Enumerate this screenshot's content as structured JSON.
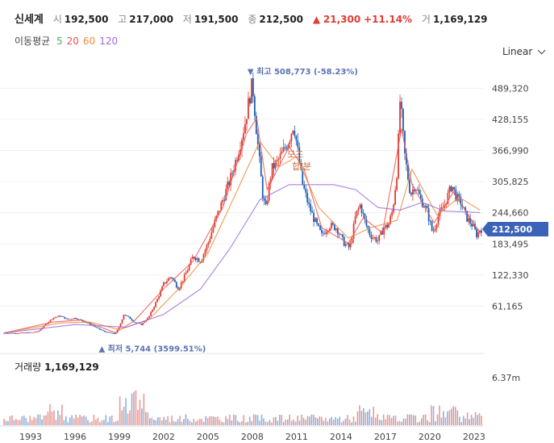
{
  "header": {
    "stock_name": "신세계",
    "open_label": "시",
    "open": "192,500",
    "high_label": "고",
    "high": "217,000",
    "low_label": "저",
    "low": "191,500",
    "close_label": "종",
    "close": "212,500",
    "change_arrow": "▲",
    "change": "21,300",
    "change_pct": "+11.14%",
    "volume_label": "거",
    "volume": "1,169,129"
  },
  "moving_average": {
    "label": "이동평균",
    "periods": [
      {
        "value": "5",
        "color": "#4caf50"
      },
      {
        "value": "20",
        "color": "#ef5350"
      },
      {
        "value": "60",
        "color": "#ef8a3c"
      },
      {
        "value": "120",
        "color": "#9c6ade"
      }
    ]
  },
  "scale_toggle": "Linear",
  "volume_panel": {
    "title": "거래량",
    "value": "1,169,129",
    "max_label": "6.37m"
  },
  "tooltip": {
    "text_line1": "모즈",
    "text_line2": "합/분"
  },
  "chart_data": {
    "type": "candlestick",
    "x_label_years": [
      "1993",
      "1996",
      "1999",
      "2002",
      "2005",
      "2008",
      "2011",
      "2014",
      "2017",
      "2020",
      "2023"
    ],
    "y_tick_labels": [
      "489,320",
      "428,155",
      "366,990",
      "305,825",
      "244,660",
      "183,495",
      "122,330",
      "61,165"
    ],
    "yaxis": {
      "min": 0,
      "max": 520000,
      "scale": "linear"
    },
    "current_price_label": "212,500",
    "current_price": 212500,
    "annotations": {
      "max": {
        "text": "최고 508,773 (-58.23%)",
        "value": 508773,
        "year": 2008.0,
        "arrow": "▼"
      },
      "min": {
        "text": "최저 5,744 (3599.51%)",
        "value": 5744,
        "year": 1998.7,
        "arrow": "▲"
      }
    },
    "colors": {
      "up": "#e03c31",
      "down": "#1e5fb3",
      "last_price_badge": "#3b63b8"
    },
    "price_series": {
      "name": "",
      "points": [
        [
          1991.2,
          8500
        ],
        [
          1992.0,
          8000
        ],
        [
          1992.8,
          9000
        ],
        [
          1993.5,
          11000
        ],
        [
          1994.0,
          25000
        ],
        [
          1994.5,
          38000
        ],
        [
          1995.0,
          42000
        ],
        [
          1995.5,
          35000
        ],
        [
          1996.0,
          38000
        ],
        [
          1996.5,
          32000
        ],
        [
          1997.0,
          26000
        ],
        [
          1997.5,
          18000
        ],
        [
          1998.0,
          11000
        ],
        [
          1998.7,
          6500
        ],
        [
          1999.0,
          20000
        ],
        [
          1999.3,
          45000
        ],
        [
          1999.7,
          38000
        ],
        [
          2000.0,
          30000
        ],
        [
          2000.5,
          25000
        ],
        [
          2001.0,
          40000
        ],
        [
          2001.5,
          70000
        ],
        [
          2002.0,
          105000
        ],
        [
          2002.5,
          120000
        ],
        [
          2003.0,
          95000
        ],
        [
          2003.5,
          125000
        ],
        [
          2004.0,
          160000
        ],
        [
          2004.5,
          150000
        ],
        [
          2005.0,
          185000
        ],
        [
          2005.5,
          230000
        ],
        [
          2006.0,
          270000
        ],
        [
          2006.5,
          310000
        ],
        [
          2007.0,
          360000
        ],
        [
          2007.5,
          420000
        ],
        [
          2007.8,
          470000
        ],
        [
          2008.0,
          500000
        ],
        [
          2008.3,
          400000
        ],
        [
          2008.7,
          280000
        ],
        [
          2008.9,
          250000
        ],
        [
          2009.3,
          330000
        ],
        [
          2009.7,
          345000
        ],
        [
          2010.0,
          360000
        ],
        [
          2010.5,
          390000
        ],
        [
          2010.8,
          420000
        ],
        [
          2011.0,
          380000
        ],
        [
          2011.4,
          300000
        ],
        [
          2011.8,
          260000
        ],
        [
          2012.2,
          230000
        ],
        [
          2012.7,
          200000
        ],
        [
          2013.2,
          220000
        ],
        [
          2013.7,
          215000
        ],
        [
          2014.2,
          185000
        ],
        [
          2014.6,
          175000
        ],
        [
          2015.0,
          240000
        ],
        [
          2015.3,
          260000
        ],
        [
          2015.7,
          220000
        ],
        [
          2016.0,
          200000
        ],
        [
          2016.5,
          190000
        ],
        [
          2016.9,
          215000
        ],
        [
          2017.2,
          220000
        ],
        [
          2017.5,
          250000
        ],
        [
          2017.8,
          330000
        ],
        [
          2018.0,
          470000
        ],
        [
          2018.3,
          360000
        ],
        [
          2018.7,
          280000
        ],
        [
          2019.0,
          300000
        ],
        [
          2019.4,
          270000
        ],
        [
          2019.8,
          250000
        ],
        [
          2020.2,
          205000
        ],
        [
          2020.6,
          240000
        ],
        [
          2021.0,
          260000
        ],
        [
          2021.5,
          300000
        ],
        [
          2021.8,
          275000
        ],
        [
          2022.1,
          265000
        ],
        [
          2022.5,
          235000
        ],
        [
          2022.9,
          220000
        ],
        [
          2023.2,
          200000
        ],
        [
          2023.4,
          212500
        ]
      ]
    },
    "moving_average_series": [
      {
        "period": "20",
        "points": [
          [
            1991.2,
            8500
          ],
          [
            1994.5,
            30000
          ],
          [
            1996.5,
            34000
          ],
          [
            1998.7,
            9000
          ],
          [
            2000.0,
            32000
          ],
          [
            2002.0,
            95000
          ],
          [
            2004.0,
            150000
          ],
          [
            2006.0,
            255000
          ],
          [
            2007.6,
            400000
          ],
          [
            2008.3,
            430000
          ],
          [
            2009.0,
            290000
          ],
          [
            2010.5,
            375000
          ],
          [
            2011.5,
            330000
          ],
          [
            2012.7,
            215000
          ],
          [
            2014.5,
            185000
          ],
          [
            2015.5,
            235000
          ],
          [
            2016.8,
            205000
          ],
          [
            2018.1,
            410000
          ],
          [
            2018.8,
            300000
          ],
          [
            2020.3,
            225000
          ],
          [
            2021.6,
            285000
          ],
          [
            2023.4,
            205000
          ]
        ]
      },
      {
        "period": "60",
        "points": [
          [
            1991.2,
            8500
          ],
          [
            1995.0,
            28000
          ],
          [
            1997.0,
            30000
          ],
          [
            1999.0,
            15000
          ],
          [
            2001.0,
            35000
          ],
          [
            2003.0,
            95000
          ],
          [
            2005.0,
            165000
          ],
          [
            2007.0,
            290000
          ],
          [
            2008.5,
            385000
          ],
          [
            2009.8,
            335000
          ],
          [
            2011.0,
            355000
          ],
          [
            2012.5,
            255000
          ],
          [
            2014.5,
            195000
          ],
          [
            2016.0,
            215000
          ],
          [
            2017.8,
            230000
          ],
          [
            2018.8,
            330000
          ],
          [
            2020.5,
            240000
          ],
          [
            2022.0,
            275000
          ],
          [
            2023.4,
            250000
          ]
        ]
      },
      {
        "period": "120",
        "points": [
          [
            1991.2,
            8500
          ],
          [
            1996.0,
            25000
          ],
          [
            1999.5,
            20000
          ],
          [
            2002.0,
            45000
          ],
          [
            2004.5,
            95000
          ],
          [
            2006.5,
            175000
          ],
          [
            2008.5,
            270000
          ],
          [
            2010.5,
            300000
          ],
          [
            2012.0,
            300000
          ],
          [
            2013.5,
            300000
          ],
          [
            2015.0,
            290000
          ],
          [
            2016.5,
            255000
          ],
          [
            2018.0,
            250000
          ],
          [
            2019.5,
            265000
          ],
          [
            2021.0,
            248000
          ],
          [
            2023.4,
            245000
          ]
        ]
      }
    ]
  }
}
